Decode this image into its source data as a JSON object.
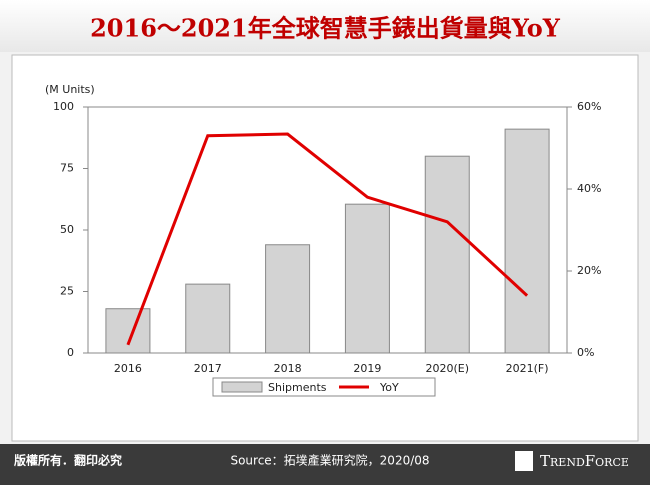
{
  "chart_data": {
    "type": "bar-line",
    "title": "2016～2021年全球智慧手錶出貨量與YoY",
    "y_label": "(M Units)",
    "categories": [
      "2016",
      "2017",
      "2018",
      "2019",
      "2020(E)",
      "2021(F)"
    ],
    "series": [
      {
        "name": "Shipments",
        "type": "bar",
        "color": "#d3d3d3",
        "values": [
          18,
          28,
          44,
          60.5,
          80,
          91
        ]
      },
      {
        "name": "YoY",
        "type": "line",
        "color": "#e00000",
        "axis": "y2",
        "values": [
          2,
          53,
          53.4,
          38,
          32,
          14
        ]
      }
    ],
    "ylim": [
      0,
      100
    ],
    "yticks": [
      0,
      25,
      50,
      75,
      100
    ],
    "y2lim": [
      0,
      60
    ],
    "y2ticks": [
      {
        "value": 0,
        "label": "0%"
      },
      {
        "value": 20,
        "label": "20%"
      },
      {
        "value": 40,
        "label": "40%"
      },
      {
        "value": 60,
        "label": "60%"
      }
    ],
    "grid": false,
    "legend": "bottom"
  },
  "footer": {
    "copyright": "版權所有．翻印必究",
    "source": "Source：拓墣產業研究院，2020/08",
    "logo": "TrendForce"
  }
}
